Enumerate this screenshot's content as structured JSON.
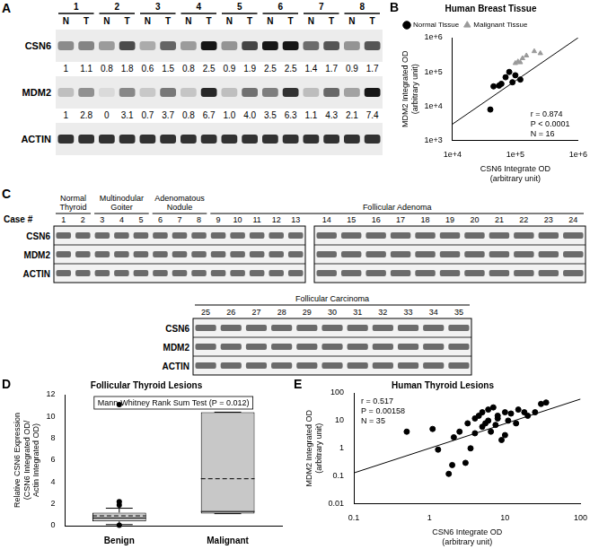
{
  "panels": [
    {
      "label": "A",
      "type": "blot",
      "cases": [
        "1",
        "2",
        "3",
        "4",
        "5",
        "6",
        "7",
        "8"
      ],
      "lanes": [
        "N",
        "T"
      ],
      "rows": [
        {
          "name": "CSN6",
          "values": [
            1,
            1.1,
            0.8,
            1.8,
            0.6,
            1.5,
            0.8,
            2.5,
            0.9,
            1.9,
            2.5,
            2.5,
            1.4,
            1.7,
            0.9,
            1.7
          ],
          "value_labels": [
            "1",
            "1.1",
            "0.8",
            "1.8",
            "0.6",
            "1.5",
            "0.8",
            "2.5",
            "0.9",
            "1.9",
            "2.5",
            "2.5",
            "1.4",
            "1.7",
            "0.9",
            "1.7"
          ]
        },
        {
          "name": "MDM2",
          "values": [
            1,
            2.8,
            0,
            3.1,
            0.7,
            3.7,
            0.8,
            6.7,
            1.0,
            4.0,
            3.5,
            6.3,
            1.1,
            4.3,
            2.1,
            7.4
          ],
          "value_labels": [
            "1",
            "2.8",
            "0",
            "3.1",
            "0.7",
            "3.7",
            "0.8",
            "6.7",
            "1.0",
            "4.0",
            "3.5",
            "6.3",
            "1.1",
            "4.3",
            "2.1",
            "7.4"
          ]
        },
        {
          "name": "ACTIN"
        }
      ]
    },
    {
      "label": "C",
      "type": "blot",
      "case_label": "Case #",
      "groups": [
        {
          "name": "Normal Thyroid",
          "cases": [
            "1",
            "2"
          ]
        },
        {
          "name": "Multinodular Goiter",
          "cases": [
            "3",
            "4",
            "5"
          ]
        },
        {
          "name": "Adenomatous Nodule",
          "cases": [
            "6",
            "7",
            "8"
          ]
        },
        {
          "name": "Follicular Adenoma",
          "cases": [
            "9",
            "10",
            "11",
            "12",
            "13",
            "14",
            "15",
            "16",
            "17",
            "18",
            "19",
            "20",
            "21",
            "22",
            "23",
            "24"
          ]
        },
        {
          "name": "Follicular Carcinoma",
          "cases": [
            "25",
            "26",
            "27",
            "28",
            "29",
            "30",
            "31",
            "32",
            "33",
            "34",
            "35"
          ]
        }
      ],
      "rows": [
        {
          "name": "CSN6"
        },
        {
          "name": "MDM2"
        },
        {
          "name": "ACTIN"
        }
      ]
    }
  ],
  "chart_data": [
    {
      "label": "B",
      "type": "scatter",
      "title": "Human Breast Tissue",
      "x_label": "CSN6 Integrate OD (arbitrary unit)",
      "y_label": "MDM2 Integrated OD (arbitrary unit)",
      "log": true,
      "grid": false,
      "legend": "upper left",
      "xlim": [
        10000,
        1000000
      ],
      "xticks": [
        {
          "value": 10000,
          "label": "1e+4"
        },
        {
          "value": 100000,
          "label": "1e+5"
        },
        {
          "value": 1000000,
          "label": "1e+6"
        }
      ],
      "ylim": [
        1000,
        1000000
      ],
      "yticks": [
        {
          "value": 1000,
          "label": "1e+3"
        },
        {
          "value": 10000,
          "label": "1e+4"
        },
        {
          "value": 100000,
          "label": "1e+5"
        },
        {
          "value": 1000000,
          "label": "1e+6"
        }
      ],
      "series": [
        {
          "name": "Normal Tissue",
          "color": "#000000",
          "marker": "circle",
          "x": [
            40000,
            45000,
            55000,
            60000,
            70000,
            80000,
            90000,
            100000,
            120000
          ],
          "values": [
            8000,
            38000,
            40000,
            45000,
            70000,
            100000,
            50000,
            80000,
            60000
          ]
        },
        {
          "name": "Malignant Tissue",
          "color": "#9a9a9a",
          "marker": "triangle",
          "x": [
            100000,
            110000,
            120000,
            130000,
            150000,
            200000,
            250000
          ],
          "values": [
            180000,
            200000,
            190000,
            250000,
            300000,
            400000,
            350000
          ]
        }
      ],
      "fit_line": {
        "x": [
          10000,
          1000000
        ],
        "values": [
          3000,
          1000000
        ]
      },
      "annotations": [
        "r = 0.874",
        "P < 0.0001",
        "N = 16"
      ]
    },
    {
      "label": "D",
      "type": "box",
      "title": "Follicular Thyroid Lesions",
      "y_label": "Relative CSN6 Expression (CSN6 Integrated OD/ Actin Integrated OD)",
      "grid": false,
      "color": "#c8c8c8",
      "categories": [
        "Benign",
        "Malignant"
      ],
      "ylim": [
        0,
        12
      ],
      "yticks": [
        0,
        2,
        4,
        6,
        8,
        10,
        12
      ],
      "boxes": [
        {
          "q1": 0.4,
          "median": 0.7,
          "q3": 1.2,
          "mean": 0.9,
          "whisker_low": 0.1,
          "whisker_high": 1.6,
          "outliers": [
            11.1,
            2.2,
            1.9,
            0.05
          ]
        },
        {
          "q1": 1.1,
          "median": 1.3,
          "q3": 10.4,
          "mean": 4.3,
          "whisker_low": 1.1,
          "whisker_high": 10.4,
          "outliers": []
        }
      ],
      "annotations": [
        "Mann-Whitney Rank Sum Test (P = 0.012)"
      ]
    },
    {
      "label": "E",
      "type": "scatter",
      "title": "Human Thyroid Lesions",
      "x_label": "CSN6 Integrate OD (arbitrary unit)",
      "y_label": "MDM2 Integrated OD (arbitrary unit)",
      "log": true,
      "grid": false,
      "xlim": [
        0.1,
        100
      ],
      "xticks": [
        0.1,
        1,
        10,
        100
      ],
      "ylim": [
        0.01,
        100
      ],
      "yticks": [
        0.01,
        0.1,
        1,
        10,
        100
      ],
      "series": [
        {
          "color": "#000000",
          "marker": "circle",
          "x": [
            0.5,
            1.1,
            1.3,
            1.8,
            2.0,
            2.1,
            2.5,
            3,
            3.2,
            3.5,
            4,
            4,
            4.5,
            5,
            5,
            5.5,
            6,
            6,
            6.5,
            7,
            7.5,
            8,
            8,
            9,
            10,
            10,
            11,
            12,
            14,
            15,
            18,
            20,
            25,
            30,
            35
          ],
          "values": [
            4,
            5,
            0.9,
            0.12,
            0.25,
            2.5,
            4,
            0.3,
            8,
            1,
            3.5,
            12,
            15,
            6,
            20,
            8,
            10,
            25,
            4,
            30,
            7,
            12,
            15,
            2,
            20,
            3,
            10,
            18,
            8,
            25,
            20,
            15,
            20,
            40,
            45
          ]
        }
      ],
      "fit_line": {
        "x": [
          0.1,
          100
        ],
        "values": [
          0.13,
          60
        ]
      },
      "annotations": [
        "r = 0.517",
        "P = 0.00158",
        "N = 35"
      ]
    }
  ]
}
